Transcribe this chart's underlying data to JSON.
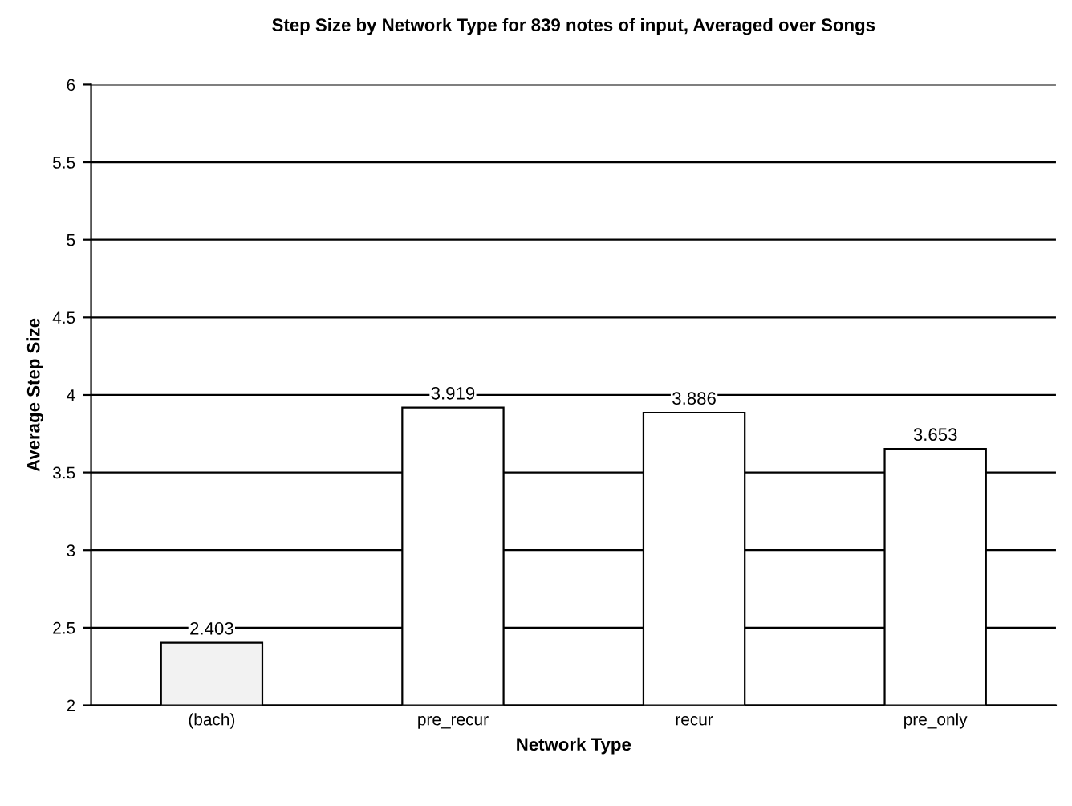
{
  "chart_data": {
    "type": "bar",
    "title": "Step Size by Network Type for 839 notes of input, Averaged over Songs",
    "xlabel": "Network Type",
    "ylabel": "Average Step Size",
    "categories": [
      "(bach)",
      "pre_recur",
      "recur",
      "pre_only"
    ],
    "values": [
      2.403,
      3.919,
      3.886,
      3.653
    ],
    "colors": [
      "#f2f2f2",
      "#ffffff",
      "#ffffff",
      "#ffffff"
    ],
    "ylim": [
      2,
      6
    ],
    "yticks": [
      2,
      2.5,
      3,
      3.5,
      4,
      4.5,
      5,
      5.5,
      6
    ],
    "grid": "y",
    "data_labels": true
  }
}
